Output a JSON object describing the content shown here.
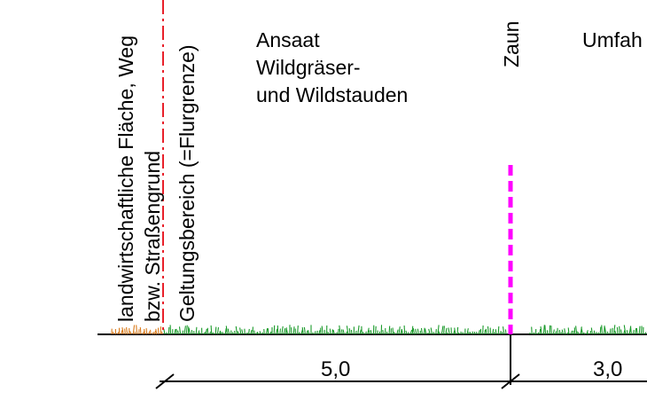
{
  "labels": {
    "landwirtschaftliche": "landwirtschaftliche Fläche, Weg",
    "strassengrund": "bzw. Straßengrund",
    "geltungsbereich": "Geltungsbereich (=Flurgrenze)",
    "zaun": "Zaun",
    "umfahrung": "Umfah",
    "ansaat": [
      "Ansaat",
      "Wildgräser-",
      "und Wildstauden"
    ]
  },
  "dimensions": {
    "first": "5,0",
    "second": "3,0"
  },
  "colors": {
    "ground_line": "#000000",
    "grass_green": "#1a9a2a",
    "grass_orange": "#d97a1a",
    "boundary_line": "#e8202a",
    "fence": "#ff00ff",
    "dimension_line": "#000000"
  },
  "icons": {
    "boundary": "dash-dot-line",
    "fence": "dashed-magenta-line",
    "grass": "grass-hatching"
  }
}
